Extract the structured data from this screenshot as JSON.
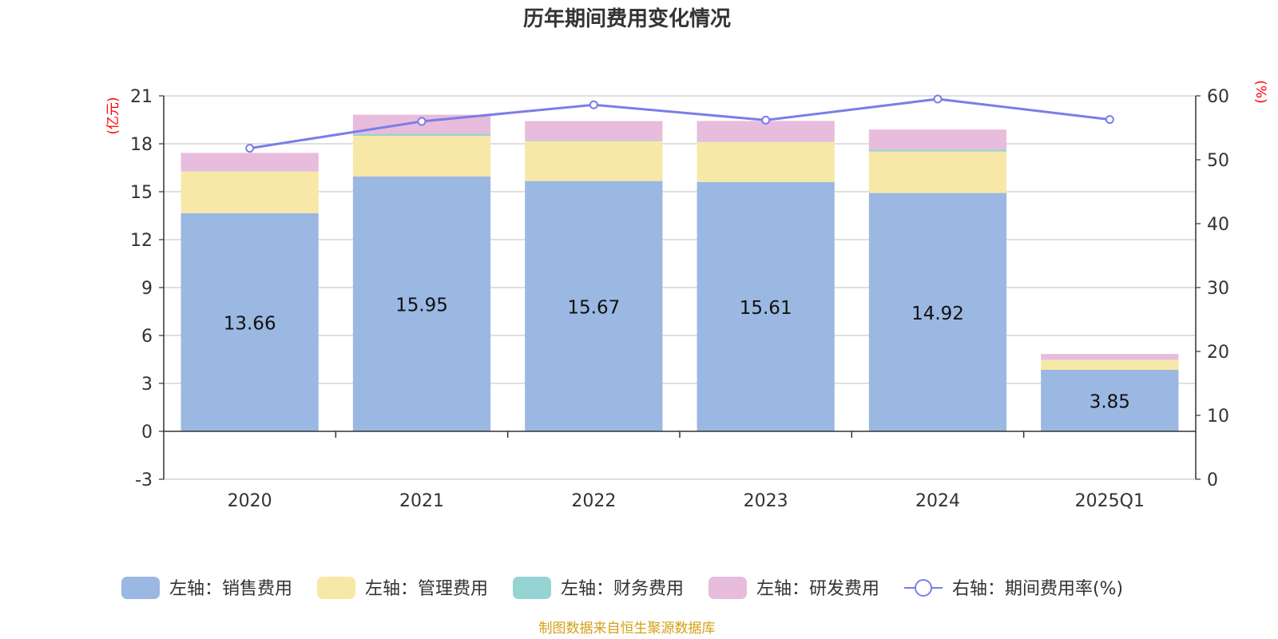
{
  "chart_data": {
    "type": "bar",
    "title": "历年期间费用变化情况",
    "source": "制图数据来自恒生聚源数据库",
    "left_axis_unit": "(亿元)",
    "right_axis_unit": "(%)",
    "categories": [
      "2020",
      "2021",
      "2022",
      "2023",
      "2024",
      "2025Q1"
    ],
    "left_axis": {
      "min": -3,
      "max": 21,
      "ticks": [
        -3,
        0,
        3,
        6,
        9,
        12,
        15,
        18,
        21
      ]
    },
    "right_axis": {
      "min": 0,
      "max": 60,
      "ticks": [
        0,
        10,
        20,
        30,
        40,
        50,
        60
      ]
    },
    "series": [
      {
        "name": "左轴：销售费用",
        "axis": "left",
        "kind": "bar",
        "color": "#9bb8e2",
        "values": [
          13.66,
          15.95,
          15.67,
          15.61,
          14.92,
          3.85
        ],
        "show_labels": true
      },
      {
        "name": "左轴：管理费用",
        "axis": "left",
        "kind": "bar",
        "color": "#f8e8a8",
        "values": [
          2.6,
          2.55,
          2.5,
          2.5,
          2.6,
          0.62
        ]
      },
      {
        "name": "左轴：财务费用",
        "axis": "left",
        "kind": "bar",
        "color": "#96d3d3",
        "values": [
          0.02,
          0.12,
          0.05,
          0.02,
          0.12,
          0.02
        ]
      },
      {
        "name": "左轴：研发费用",
        "axis": "left",
        "kind": "bar",
        "color": "#e8bcdc",
        "values": [
          1.15,
          1.2,
          1.2,
          1.3,
          1.25,
          0.35
        ]
      },
      {
        "name": "右轴：期间费用率(%)",
        "axis": "right",
        "kind": "line",
        "color": "#7b7de8",
        "values": [
          51.8,
          56.0,
          58.6,
          56.2,
          59.5,
          56.3
        ]
      }
    ],
    "grid": true,
    "legend_position": "bottom"
  }
}
